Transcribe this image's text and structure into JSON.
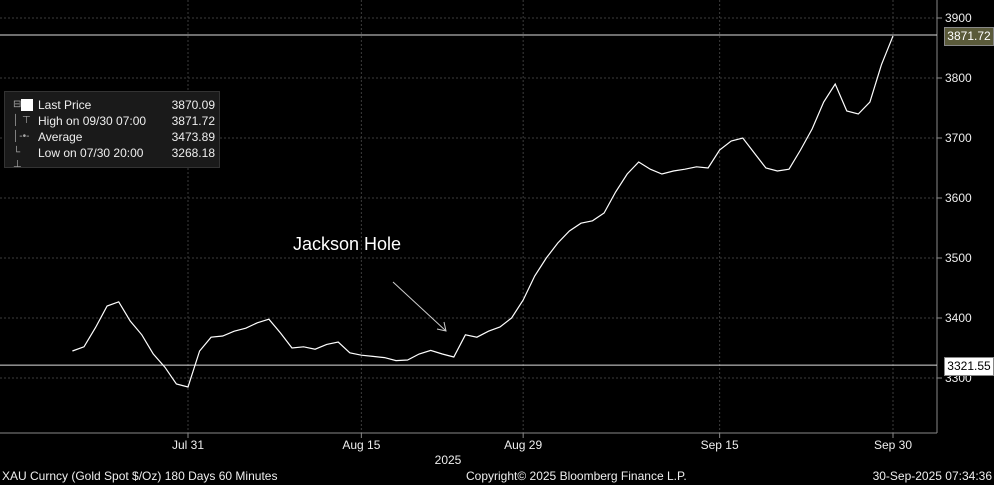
{
  "legend": {
    "rows": [
      {
        "icon": "square-swatch-icon",
        "label": "Last Price",
        "value": "3870.09"
      },
      {
        "icon": "high-marker-icon",
        "label": "High on 09/30 07:00",
        "value": "3871.72"
      },
      {
        "icon": "average-marker-icon",
        "label": "Average",
        "value": "3473.89"
      },
      {
        "icon": "low-marker-icon",
        "label": "Low on 07/30 20:00",
        "value": "3268.18"
      }
    ]
  },
  "annotation": {
    "text": "Jackson Hole"
  },
  "price_tags": {
    "high": "3871.72",
    "last_ref": "3321.55"
  },
  "footer": {
    "security": "XAU Curncy (Gold Spot  $/Oz) 180 Days 60 Minutes",
    "copyright": "Copyright© 2025 Bloomberg Finance L.P.",
    "timestamp": "30-Sep-2025 07:34:36"
  },
  "colors": {
    "background": "#000000",
    "line": "#ffffff",
    "grid": "#3c3c3c",
    "tag_high_bg": "#5a5a3a",
    "tag_last_bg": "#ffffff"
  },
  "chart_data": {
    "type": "line",
    "grid": true,
    "legend_position": "top-left",
    "x_year_label": "2025",
    "x_ticks": [
      "Jul 31",
      "Aug 15",
      "Aug 29",
      "Sep 15",
      "Sep 30"
    ],
    "y_ticks": [
      3300,
      3400,
      3500,
      3600,
      3700,
      3800,
      3900
    ],
    "ylim": [
      3210,
      3930
    ],
    "reference_lines": [
      3871.72,
      3321.55
    ],
    "series": [
      {
        "name": "Last Price",
        "x": [
          "Jul 21",
          "Jul 22",
          "Jul 23",
          "Jul 24",
          "Jul 25",
          "Jul 26",
          "Jul 27",
          "Jul 28",
          "Jul 29",
          "Jul 30",
          "Jul 31",
          "Aug 1",
          "Aug 2",
          "Aug 3",
          "Aug 4",
          "Aug 5",
          "Aug 6",
          "Aug 7",
          "Aug 8",
          "Aug 9",
          "Aug 10",
          "Aug 11",
          "Aug 12",
          "Aug 13",
          "Aug 14",
          "Aug 15",
          "Aug 16",
          "Aug 17",
          "Aug 18",
          "Aug 19",
          "Aug 20",
          "Aug 21",
          "Aug 22",
          "Aug 23",
          "Aug 24",
          "Aug 25",
          "Aug 26",
          "Aug 27",
          "Aug 28",
          "Aug 29",
          "Aug 30",
          "Aug 31",
          "Sep 1",
          "Sep 2",
          "Sep 3",
          "Sep 4",
          "Sep 5",
          "Sep 6",
          "Sep 7",
          "Sep 8",
          "Sep 9",
          "Sep 10",
          "Sep 11",
          "Sep 12",
          "Sep 13",
          "Sep 14",
          "Sep 15",
          "Sep 16",
          "Sep 17",
          "Sep 18",
          "Sep 19",
          "Sep 20",
          "Sep 21",
          "Sep 22",
          "Sep 23",
          "Sep 24",
          "Sep 25",
          "Sep 26",
          "Sep 27",
          "Sep 28",
          "Sep 29",
          "Sep 30"
        ],
        "y": [
          3345,
          3352,
          3384,
          3420,
          3427,
          3395,
          3372,
          3340,
          3318,
          3290,
          3285,
          3345,
          3368,
          3370,
          3378,
          3383,
          3392,
          3398,
          3375,
          3350,
          3352,
          3348,
          3356,
          3360,
          3342,
          3338,
          3336,
          3334,
          3329,
          3330,
          3340,
          3346,
          3340,
          3335,
          3372,
          3368,
          3378,
          3385,
          3400,
          3430,
          3470,
          3500,
          3525,
          3545,
          3558,
          3562,
          3575,
          3610,
          3640,
          3660,
          3648,
          3640,
          3645,
          3648,
          3652,
          3650,
          3680,
          3695,
          3700,
          3675,
          3650,
          3645,
          3648,
          3680,
          3715,
          3760,
          3790,
          3745,
          3740,
          3760,
          3822,
          3870
        ]
      }
    ]
  }
}
